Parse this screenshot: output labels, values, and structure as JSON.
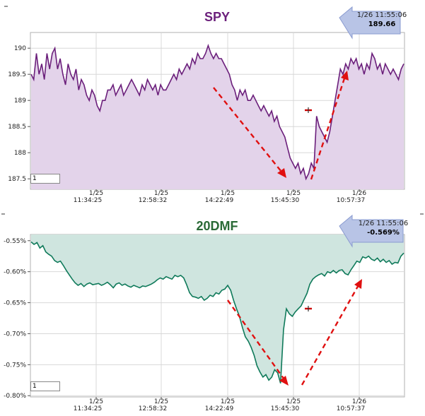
{
  "chart_data": [
    {
      "type": "line",
      "title": "SPY",
      "ylim": [
        187.3,
        190.3
      ],
      "yticks": [
        "187.5",
        "188",
        "188.5",
        "189",
        "189.5",
        "190"
      ],
      "ytick_values": [
        187.5,
        188,
        188.5,
        189,
        189.5,
        190
      ],
      "xticks": [
        {
          "date": "1/25",
          "time": "11:34:25"
        },
        {
          "date": "1/25",
          "time": "12:58:32"
        },
        {
          "date": "1/25",
          "time": "14:22:49"
        },
        {
          "date": "1/25",
          "time": "15:45:30"
        },
        {
          "date": "1/26",
          "time": "10:57:37"
        }
      ],
      "callout": {
        "time": "1/26 11:55:06",
        "value": "189.66"
      },
      "input_value": "1",
      "colors": {
        "line": "#6b1f7b",
        "fill": "#e3d3ea",
        "marker": "#cc0000",
        "arrow": "#e01010"
      },
      "series": [
        {
          "values": [
            189.5,
            189.4,
            189.9,
            189.5,
            189.7,
            189.4,
            189.9,
            189.6,
            189.9,
            190.0,
            189.6,
            189.8,
            189.5,
            189.3,
            189.7,
            189.5,
            189.4,
            189.6,
            189.2,
            189.4,
            189.3,
            189.1,
            189.0,
            189.2,
            189.1,
            188.9,
            188.8,
            189.0,
            189.0,
            189.2,
            189.2,
            189.3,
            189.1,
            189.2,
            189.3,
            189.1,
            189.2,
            189.3,
            189.4,
            189.3,
            189.2,
            189.1,
            189.3,
            189.2,
            189.4,
            189.3,
            189.2,
            189.3,
            189.1,
            189.3,
            189.2,
            189.2,
            189.3,
            189.4,
            189.5,
            189.4,
            189.6,
            189.5,
            189.6,
            189.7,
            189.6,
            189.8,
            189.7,
            189.9,
            189.8,
            189.8,
            189.9,
            190.05,
            189.9,
            189.8,
            189.9,
            189.8,
            189.8,
            189.7,
            189.6,
            189.5,
            189.3,
            189.2,
            189.0,
            189.2,
            189.1,
            189.2,
            189.0,
            189.0,
            189.1,
            189.0,
            188.9,
            188.8,
            188.9,
            188.8,
            188.7,
            188.8,
            188.6,
            188.7,
            188.5,
            188.4,
            188.3,
            188.1,
            187.9,
            187.8,
            187.7,
            187.8,
            187.6,
            187.7,
            187.5,
            187.6,
            187.8,
            187.7,
            188.7,
            188.5,
            188.4,
            188.3,
            188.2,
            188.4,
            188.7,
            189.0,
            189.3,
            189.6,
            189.5,
            189.7,
            189.6,
            189.8,
            189.7,
            189.8,
            189.6,
            189.7,
            189.5,
            189.7,
            189.6,
            189.9,
            189.8,
            189.6,
            189.7,
            189.5,
            189.7,
            189.6,
            189.5,
            189.6,
            189.5,
            189.4,
            189.6,
            189.7
          ]
        }
      ]
    },
    {
      "type": "line",
      "title": "20DMF",
      "ylim": [
        -0.802,
        -0.54
      ],
      "yticks": [
        "-0.55%",
        "-0.60%",
        "-0.65%",
        "-0.70%",
        "-0.75%",
        "-0.80%"
      ],
      "ytick_values": [
        -0.55,
        -0.6,
        -0.65,
        -0.7,
        -0.75,
        -0.8
      ],
      "xticks": [
        {
          "date": "1/25",
          "time": "11:34:25"
        },
        {
          "date": "1/25",
          "time": "12:58:32"
        },
        {
          "date": "1/25",
          "time": "14:22:49"
        },
        {
          "date": "1/25",
          "time": "15:45:30"
        },
        {
          "date": "1/26",
          "time": "10:57:37"
        }
      ],
      "callout": {
        "time": "1/26 11:55:06",
        "value": "-0.569%"
      },
      "input_value": "1",
      "colors": {
        "line": "#0f7a5a",
        "fill": "#cfe5df",
        "marker": "#cc0000",
        "arrow": "#e01010"
      },
      "series": [
        {
          "values": [
            -0.552,
            -0.556,
            -0.553,
            -0.562,
            -0.558,
            -0.568,
            -0.572,
            -0.575,
            -0.582,
            -0.585,
            -0.583,
            -0.59,
            -0.598,
            -0.605,
            -0.612,
            -0.618,
            -0.622,
            -0.619,
            -0.624,
            -0.62,
            -0.618,
            -0.621,
            -0.62,
            -0.619,
            -0.622,
            -0.62,
            -0.617,
            -0.621,
            -0.626,
            -0.62,
            -0.618,
            -0.622,
            -0.62,
            -0.623,
            -0.625,
            -0.622,
            -0.624,
            -0.626,
            -0.623,
            -0.624,
            -0.622,
            -0.62,
            -0.617,
            -0.613,
            -0.61,
            -0.612,
            -0.608,
            -0.61,
            -0.612,
            -0.606,
            -0.608,
            -0.606,
            -0.61,
            -0.621,
            -0.634,
            -0.64,
            -0.641,
            -0.643,
            -0.64,
            -0.646,
            -0.643,
            -0.638,
            -0.64,
            -0.634,
            -0.636,
            -0.63,
            -0.628,
            -0.622,
            -0.63,
            -0.646,
            -0.66,
            -0.672,
            -0.69,
            -0.705,
            -0.712,
            -0.722,
            -0.735,
            -0.752,
            -0.762,
            -0.77,
            -0.766,
            -0.775,
            -0.77,
            -0.758,
            -0.763,
            -0.78,
            -0.694,
            -0.66,
            -0.668,
            -0.672,
            -0.665,
            -0.66,
            -0.655,
            -0.645,
            -0.635,
            -0.62,
            -0.612,
            -0.608,
            -0.605,
            -0.603,
            -0.607,
            -0.6,
            -0.602,
            -0.598,
            -0.602,
            -0.598,
            -0.597,
            -0.603,
            -0.605,
            -0.597,
            -0.59,
            -0.583,
            -0.585,
            -0.576,
            -0.578,
            -0.575,
            -0.58,
            -0.582,
            -0.578,
            -0.584,
            -0.58,
            -0.585,
            -0.582,
            -0.588,
            -0.585,
            -0.586,
            -0.575,
            -0.57
          ]
        }
      ]
    }
  ]
}
